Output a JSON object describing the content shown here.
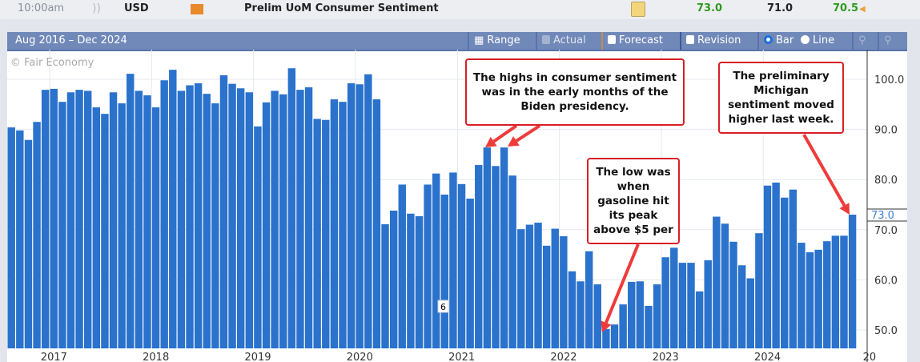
{
  "event_row": {
    "time": "10:00am",
    "currency": "USD",
    "title": "Prelim UoM Consumer Sentiment",
    "actual": "73.0",
    "forecast": "71.0",
    "previous": "70.5",
    "icons": [
      "impact-icon",
      "folder-icon",
      "detail-doc-icon",
      "revision-triangle-icon"
    ]
  },
  "toolbar": {
    "range_text": "Aug 2016 – Dec 2024",
    "range_btn": "Range",
    "actual": "Actual",
    "forecast": "Forecast",
    "revision": "Revision",
    "bar": "Bar",
    "line": "Line"
  },
  "watermark": "© Fair Economy",
  "annotations": {
    "highs": "The highs in consumer sentiment was in the early months of the Biden presidency.",
    "low": "The low was when gasoline hit its peak above $5 per",
    "prelim": "The preliminary Michigan sentiment moved higher last week."
  },
  "colors": {
    "bar": "#2a72cc",
    "arrow": "#ee3b3b",
    "current": "#3a7fd0"
  },
  "chart_data": {
    "type": "bar",
    "title": "Prelim UoM Consumer Sentiment",
    "start": "Aug 2016",
    "frequency": "monthly",
    "values": [
      90.4,
      89.8,
      87.9,
      91.5,
      97.9,
      98.1,
      95.5,
      97.4,
      97.9,
      97.7,
      94.4,
      93.1,
      97.4,
      95.2,
      101.1,
      97.7,
      96.8,
      94.4,
      99.8,
      101.9,
      97.7,
      98.8,
      99.2,
      97.1,
      95.2,
      100.8,
      99.1,
      98.2,
      97.4,
      90.6,
      95.4,
      97.7,
      97.0,
      102.2,
      97.9,
      98.4,
      92.1,
      91.9,
      96.0,
      95.5,
      99.2,
      99.0,
      101.0,
      96.0,
      71.1,
      73.8,
      79.0,
      73.2,
      72.7,
      79.0,
      81.2,
      77.0,
      81.4,
      79.1,
      76.2,
      82.9,
      86.4,
      82.7,
      86.4,
      80.8,
      70.1,
      71.0,
      71.4,
      66.8,
      70.2,
      68.7,
      61.7,
      59.7,
      65.7,
      59.1,
      50.2,
      51.1,
      55.1,
      59.6,
      59.7,
      54.8,
      59.1,
      64.5,
      66.4,
      63.4,
      63.4,
      57.7,
      63.9,
      72.6,
      71.2,
      67.6,
      62.9,
      60.3,
      69.3,
      78.8,
      79.4,
      76.4,
      78.0,
      67.4,
      65.5,
      66.0,
      67.7,
      68.8,
      68.8,
      73.0
    ],
    "x_ticks": [
      {
        "label": "2017",
        "index": 5
      },
      {
        "label": "2018",
        "index": 17
      },
      {
        "label": "2019",
        "index": 29
      },
      {
        "label": "2020",
        "index": 41
      },
      {
        "label": "2021",
        "index": 53
      },
      {
        "label": "2022",
        "index": 65
      },
      {
        "label": "2023",
        "index": 77
      },
      {
        "label": "2024",
        "index": 89
      },
      {
        "label": "20",
        "index": 101
      }
    ],
    "y_ticks": [
      "50.0",
      "60.0",
      "70.0",
      "80.0",
      "90.0",
      "100.0"
    ],
    "y_tick_values": [
      50,
      60,
      70,
      80,
      90,
      100
    ],
    "current_label": "73.0",
    "current_value": 73.0,
    "ylim": [
      46.3,
      105
    ],
    "grid": true
  }
}
